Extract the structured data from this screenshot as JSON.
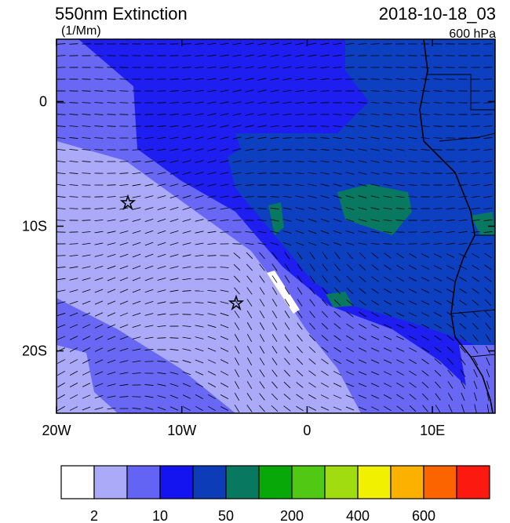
{
  "header": {
    "title": "550nm Extinction",
    "units": "(1/Mm)",
    "time": "2018-10-18_03",
    "level": "600 hPa"
  },
  "map": {
    "xlim": [
      -20,
      15
    ],
    "ylim": [
      -25,
      5
    ],
    "xticks": [
      {
        "value": -20,
        "label": "20W"
      },
      {
        "value": -10,
        "label": "10W"
      },
      0,
      {
        "value": 10,
        "label": "10E"
      }
    ],
    "yticks": [
      0,
      {
        "value": -10,
        "label": "10S"
      },
      {
        "value": -20,
        "label": "20S"
      }
    ]
  },
  "colorbar": {
    "colors": [
      "#ffffff",
      "#aaaaf8",
      "#6464f4",
      "#1414f0",
      "#0c3cb8",
      "#087860",
      "#08a808",
      "#50c814",
      "#a0dc10",
      "#f0f000",
      "#fcb000",
      "#fc6400",
      "#fc1a10"
    ],
    "labels": [
      2,
      10,
      50,
      200,
      400,
      600
    ]
  }
}
